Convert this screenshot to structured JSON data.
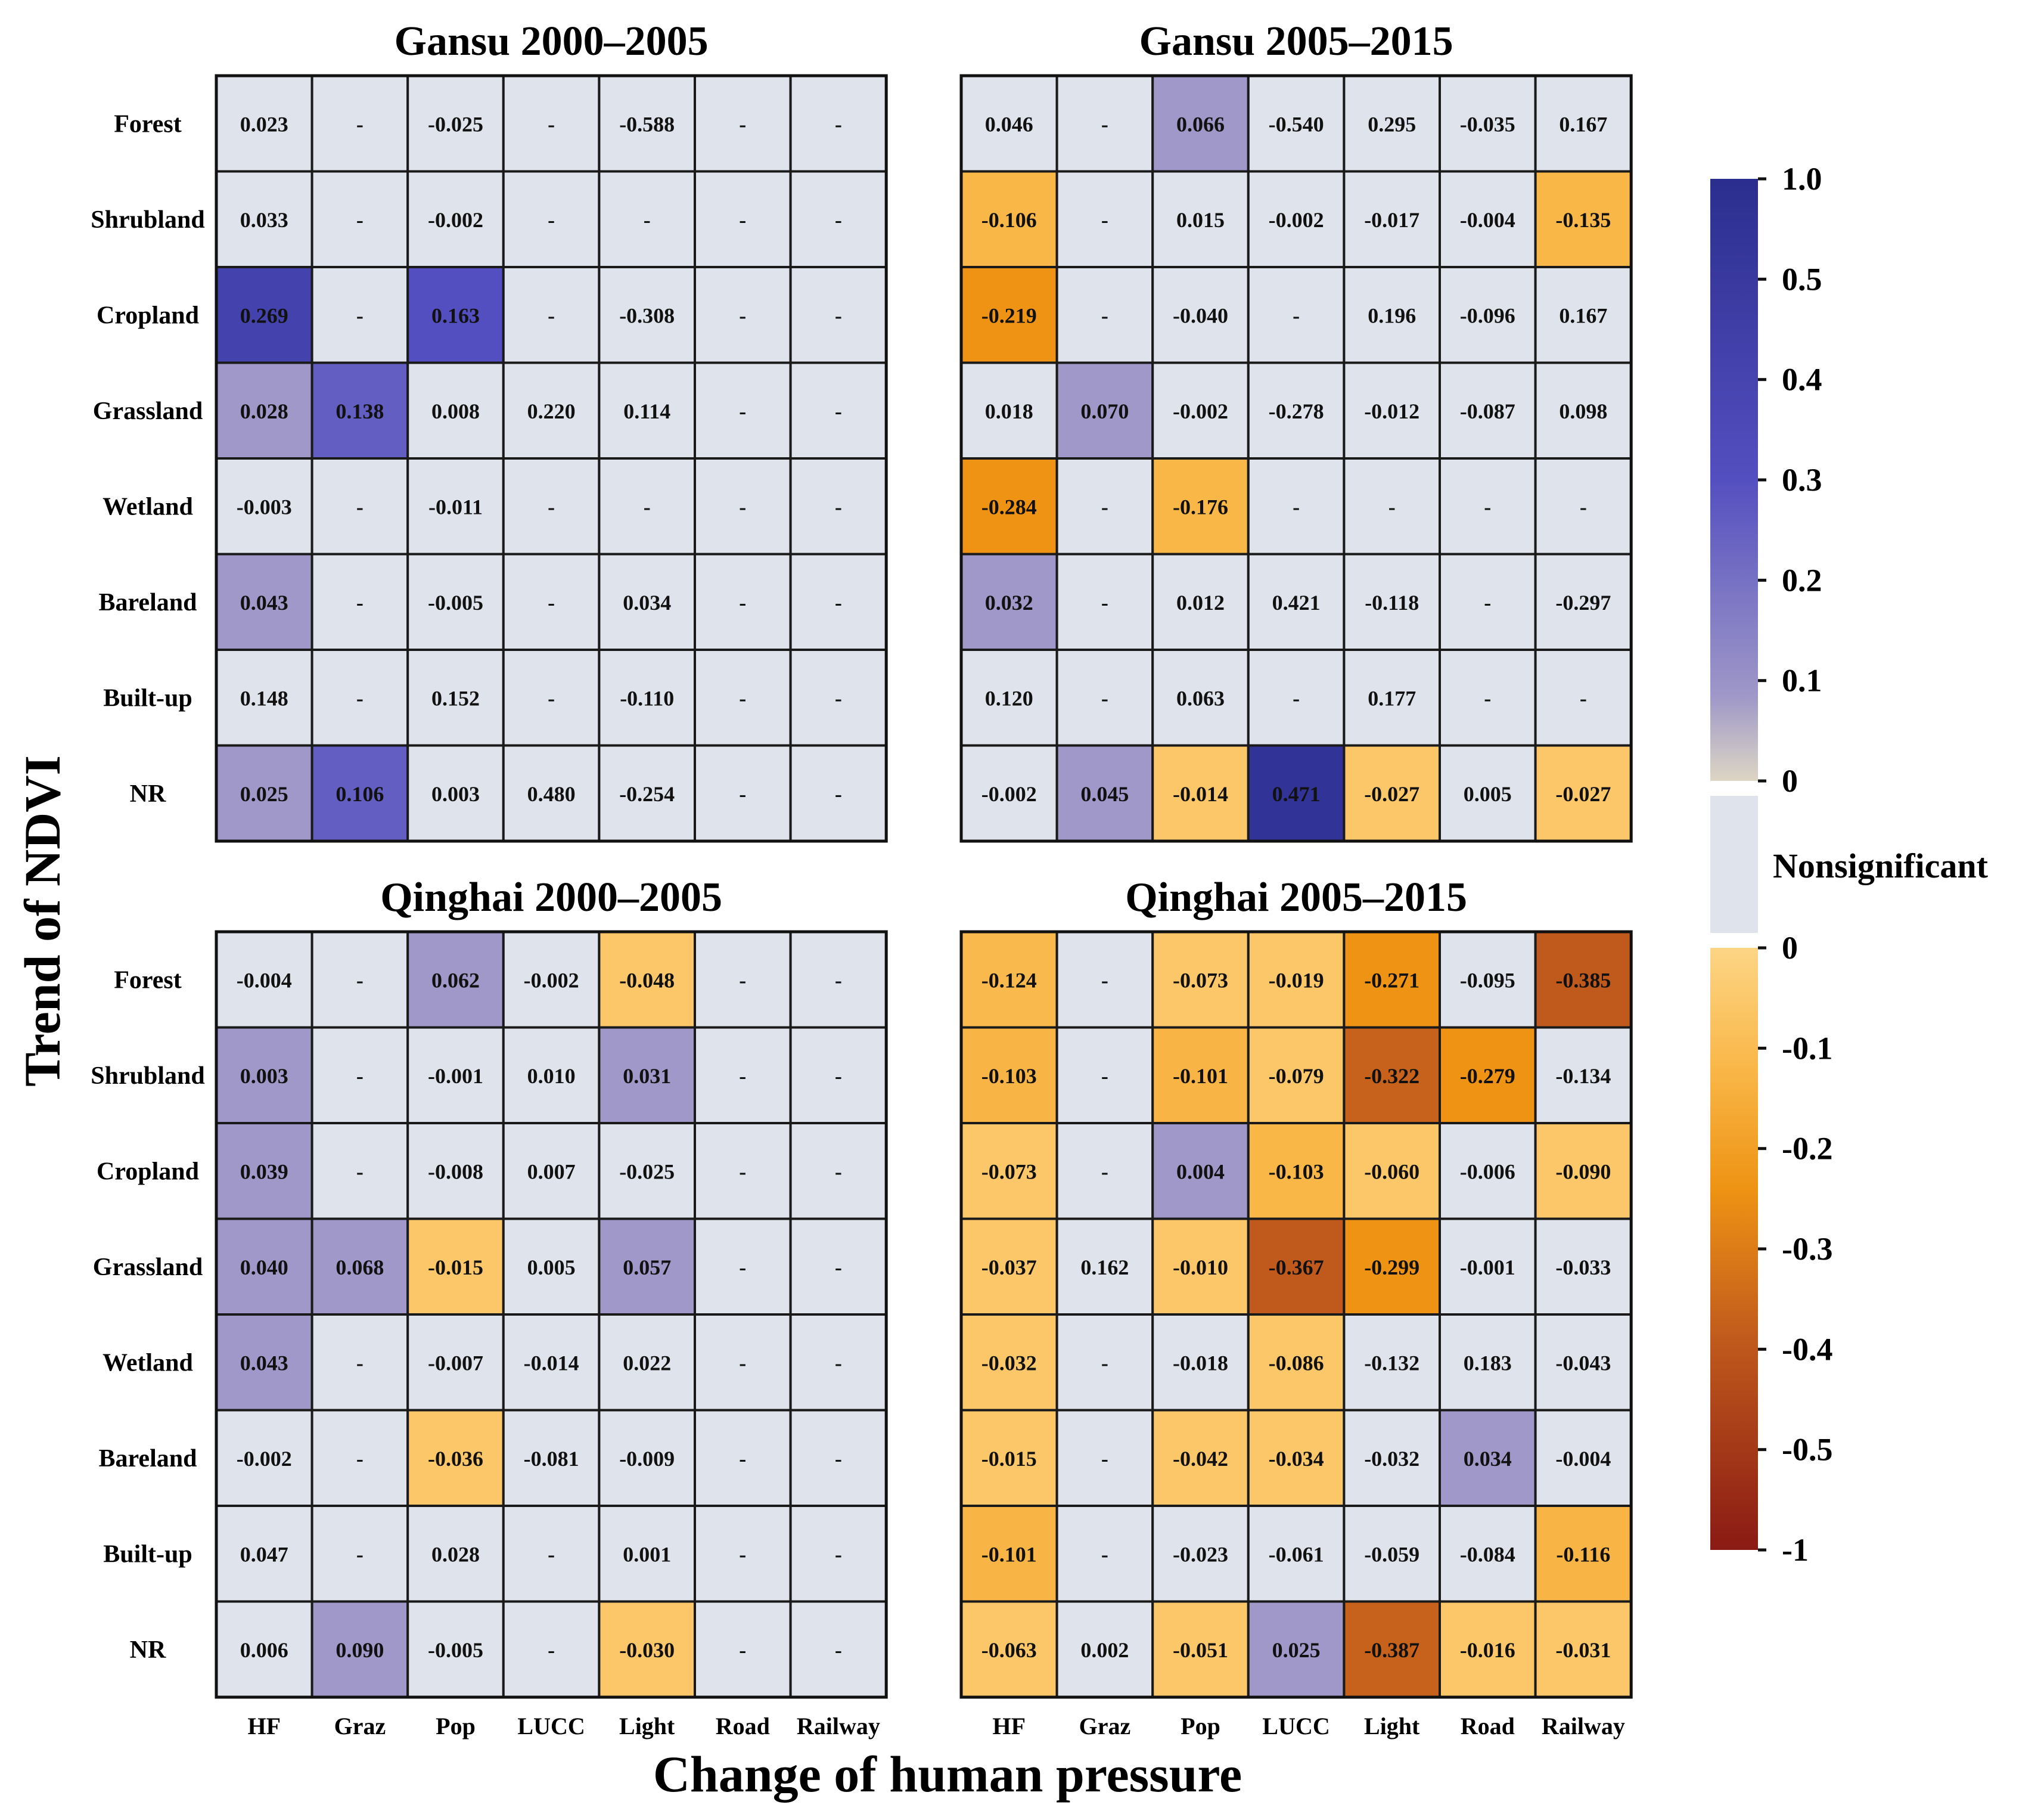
{
  "chart_data": {
    "type": "heatmap",
    "xlabel": "Change of human pressure",
    "ylabel": "Trend of NDVI",
    "rows": [
      "Forest",
      "Shrubland",
      "Cropland",
      "Grassland",
      "Wetland",
      "Bareland",
      "Built-up",
      "NR"
    ],
    "columns": [
      "HF",
      "Graz",
      "Pop",
      "LUCC",
      "Light",
      "Road",
      "Railway"
    ],
    "panels": [
      {
        "title": "Gansu 2000–2005",
        "values": [
          [
            "0.023",
            "-",
            "-0.025",
            "-",
            "-0.588",
            "-",
            "-"
          ],
          [
            "0.033",
            "-",
            "-0.002",
            "-",
            "-",
            "-",
            "-"
          ],
          [
            "0.269",
            "-",
            "0.163",
            "-",
            "-0.308",
            "-",
            "-"
          ],
          [
            "0.028",
            "0.138",
            "0.008",
            "0.220",
            "0.114",
            "-",
            "-"
          ],
          [
            "-0.003",
            "-",
            "-0.011",
            "-",
            "-",
            "-",
            "-"
          ],
          [
            "0.043",
            "-",
            "-0.005",
            "-",
            "0.034",
            "-",
            "-"
          ],
          [
            "0.148",
            "-",
            "0.152",
            "-",
            "-0.110",
            "-",
            "-"
          ],
          [
            "0.025",
            "0.106",
            "0.003",
            "0.480",
            "-0.254",
            "-",
            "-"
          ]
        ],
        "fills": [
          [
            0,
            0,
            0,
            0,
            0,
            0,
            0
          ],
          [
            0,
            0,
            0,
            0,
            0,
            0,
            0
          ],
          [
            0.42,
            0,
            0.3,
            0,
            0,
            0,
            0
          ],
          [
            0.1,
            0.26,
            0,
            0,
            0,
            0,
            0
          ],
          [
            0,
            0,
            0,
            0,
            0,
            0,
            0
          ],
          [
            0.1,
            0,
            0,
            0,
            0,
            0,
            0
          ],
          [
            0,
            0,
            0,
            0,
            0,
            0,
            0
          ],
          [
            0.1,
            0.26,
            0,
            0,
            0,
            0,
            0
          ]
        ]
      },
      {
        "title": "Gansu 2005–2015",
        "values": [
          [
            "0.046",
            "-",
            "0.066",
            "-0.540",
            "0.295",
            "-0.035",
            "0.167"
          ],
          [
            "-0.106",
            "-",
            "0.015",
            "-0.002",
            "-0.017",
            "-0.004",
            "-0.135"
          ],
          [
            "-0.219",
            "-",
            "-0.040",
            "-",
            "0.196",
            "-0.096",
            "0.167"
          ],
          [
            "0.018",
            "0.070",
            "-0.002",
            "-0.278",
            "-0.012",
            "-0.087",
            "0.098"
          ],
          [
            "-0.284",
            "-",
            "-0.176",
            "-",
            "-",
            "-",
            "-"
          ],
          [
            "0.032",
            "-",
            "0.012",
            "0.421",
            "-0.118",
            "-",
            "-0.297"
          ],
          [
            "0.120",
            "-",
            "0.063",
            "-",
            "0.177",
            "-",
            "-"
          ],
          [
            "-0.002",
            "0.045",
            "-0.014",
            "0.471",
            "-0.027",
            "0.005",
            "-0.027"
          ]
        ],
        "fills": [
          [
            0,
            0,
            0.1,
            0,
            0,
            0,
            0
          ],
          [
            -0.13,
            0,
            0,
            0,
            0,
            0,
            -0.13
          ],
          [
            -0.25,
            0,
            0,
            0,
            0,
            0,
            0
          ],
          [
            0,
            0.1,
            0,
            0,
            0,
            0,
            0
          ],
          [
            -0.25,
            0,
            -0.13,
            0,
            0,
            0,
            0
          ],
          [
            0.1,
            0,
            0,
            0,
            0,
            0,
            0
          ],
          [
            0,
            0,
            0,
            0,
            0,
            0,
            0
          ],
          [
            0,
            0.1,
            -0.06,
            0.55,
            -0.06,
            0,
            -0.06
          ]
        ]
      },
      {
        "title": "Qinghai 2000–2005",
        "values": [
          [
            "-0.004",
            "-",
            "0.062",
            "-0.002",
            "-0.048",
            "-",
            "-"
          ],
          [
            "0.003",
            "-",
            "-0.001",
            "0.010",
            "0.031",
            "-",
            "-"
          ],
          [
            "0.039",
            "-",
            "-0.008",
            "0.007",
            "-0.025",
            "-",
            "-"
          ],
          [
            "0.040",
            "0.068",
            "-0.015",
            "0.005",
            "0.057",
            "-",
            "-"
          ],
          [
            "0.043",
            "-",
            "-0.007",
            "-0.014",
            "0.022",
            "-",
            "-"
          ],
          [
            "-0.002",
            "-",
            "-0.036",
            "-0.081",
            "-0.009",
            "-",
            "-"
          ],
          [
            "0.047",
            "-",
            "0.028",
            "-",
            "0.001",
            "-",
            "-"
          ],
          [
            "0.006",
            "0.090",
            "-0.005",
            "-",
            "-0.030",
            "-",
            "-"
          ]
        ],
        "fills": [
          [
            0,
            0,
            0.1,
            0,
            -0.06,
            0,
            0
          ],
          [
            0.1,
            0,
            0,
            0,
            0.1,
            0,
            0
          ],
          [
            0.1,
            0,
            0,
            0,
            0,
            0,
            0
          ],
          [
            0.1,
            0.1,
            -0.06,
            0,
            0.1,
            0,
            0
          ],
          [
            0.1,
            0,
            0,
            0,
            0,
            0,
            0
          ],
          [
            0,
            0,
            -0.06,
            0,
            0,
            0,
            0
          ],
          [
            0,
            0,
            0,
            0,
            0,
            0,
            0
          ],
          [
            0,
            0.1,
            0,
            0,
            -0.06,
            0,
            0
          ]
        ]
      },
      {
        "title": "Qinghai 2005–2015",
        "values": [
          [
            "-0.124",
            "-",
            "-0.073",
            "-0.019",
            "-0.271",
            "-0.095",
            "-0.385"
          ],
          [
            "-0.103",
            "-",
            "-0.101",
            "-0.079",
            "-0.322",
            "-0.279",
            "-0.134"
          ],
          [
            "-0.073",
            "-",
            "0.004",
            "-0.103",
            "-0.060",
            "-0.006",
            "-0.090"
          ],
          [
            "-0.037",
            "0.162",
            "-0.010",
            "-0.367",
            "-0.299",
            "-0.001",
            "-0.033"
          ],
          [
            "-0.032",
            "-",
            "-0.018",
            "-0.086",
            "-0.132",
            "0.183",
            "-0.043"
          ],
          [
            "-0.015",
            "-",
            "-0.042",
            "-0.034",
            "-0.032",
            "0.034",
            "-0.004"
          ],
          [
            "-0.101",
            "-",
            "-0.023",
            "-0.061",
            "-0.059",
            "-0.084",
            "-0.116"
          ],
          [
            "-0.063",
            "0.002",
            "-0.051",
            "0.025",
            "-0.387",
            "-0.016",
            "-0.031"
          ]
        ],
        "fills": [
          [
            -0.12,
            0,
            -0.06,
            -0.06,
            -0.25,
            0,
            -0.4
          ],
          [
            -0.14,
            0,
            -0.14,
            -0.06,
            -0.38,
            -0.25,
            0
          ],
          [
            -0.06,
            0,
            0.1,
            -0.13,
            -0.06,
            0,
            -0.06
          ],
          [
            -0.06,
            0,
            -0.06,
            -0.4,
            -0.25,
            0,
            0
          ],
          [
            -0.06,
            0,
            0,
            -0.06,
            0,
            0,
            0
          ],
          [
            -0.06,
            0,
            -0.06,
            -0.06,
            0,
            0.1,
            0
          ],
          [
            -0.14,
            0,
            0,
            0,
            0,
            0,
            -0.14
          ],
          [
            -0.06,
            0,
            -0.06,
            0.1,
            -0.38,
            -0.06,
            -0.06
          ]
        ]
      }
    ],
    "colorbar": {
      "positive_ticks": [
        "1.0",
        "0.5",
        "0.4",
        "0.3",
        "0.2",
        "0.1",
        "0"
      ],
      "nonsignificant_label": "Nonsignificant",
      "negative_ticks": [
        "0",
        "-0.1",
        "-0.2",
        "-0.3",
        "-0.4",
        "-0.5",
        "-1"
      ],
      "nonsignificant_color": "#dfe3eb",
      "positive_colors": [
        "#ddd6c4",
        "#9f98c8",
        "#544fc0",
        "#2b2e8e"
      ],
      "negative_colors": [
        "#fdd585",
        "#f9b748",
        "#ee9314",
        "#c05a1c",
        "#8a1a14"
      ]
    },
    "grid": true
  }
}
